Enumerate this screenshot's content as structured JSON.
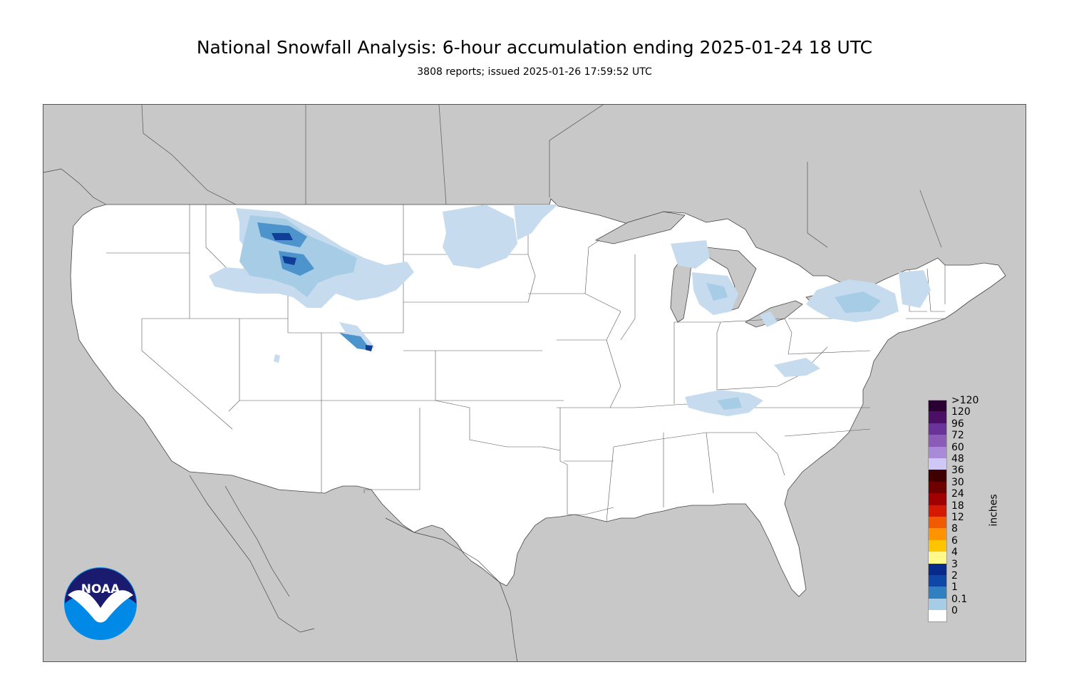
{
  "title": "National Snowfall Analysis: 6-hour accumulation ending 2025-01-24 18 UTC",
  "subtitle": "3808 reports; issued 2025-01-26 17:59:52 UTC",
  "legend": {
    "units": "inches",
    "items": [
      {
        "label": ">120",
        "color": "#2a0033"
      },
      {
        "label": "120",
        "color": "#4b0f66"
      },
      {
        "label": "96",
        "color": "#6a3399"
      },
      {
        "label": "72",
        "color": "#8a5cb8"
      },
      {
        "label": "60",
        "color": "#a98ad8"
      },
      {
        "label": "48",
        "color": "#cfc7f5"
      },
      {
        "label": "36",
        "color": "#3f0000"
      },
      {
        "label": "30",
        "color": "#6e0000"
      },
      {
        "label": "24",
        "color": "#a10000"
      },
      {
        "label": "18",
        "color": "#d41a00"
      },
      {
        "label": "12",
        "color": "#f05a00"
      },
      {
        "label": "8",
        "color": "#ff9300"
      },
      {
        "label": "6",
        "color": "#ffc400"
      },
      {
        "label": "4",
        "color": "#fff88a"
      },
      {
        "label": "3",
        "color": "#082a8a"
      },
      {
        "label": "2",
        "color": "#0f47a8"
      },
      {
        "label": "1",
        "color": "#2f7fc1"
      },
      {
        "label": "0.1",
        "color": "#a6cce6"
      },
      {
        "label": "0",
        "color": "#ffffff"
      }
    ]
  },
  "logo": {
    "text": "NOAA",
    "icon": "noaa-logo-icon"
  },
  "colors": {
    "background_land": "#c8c8c8",
    "us_land": "#ffffff",
    "light_snow": "#c6dcee",
    "moderate_snow": "#a6cce6",
    "heavy_snow": "#4e94cc",
    "very_heavy_snow": "#103e98"
  }
}
